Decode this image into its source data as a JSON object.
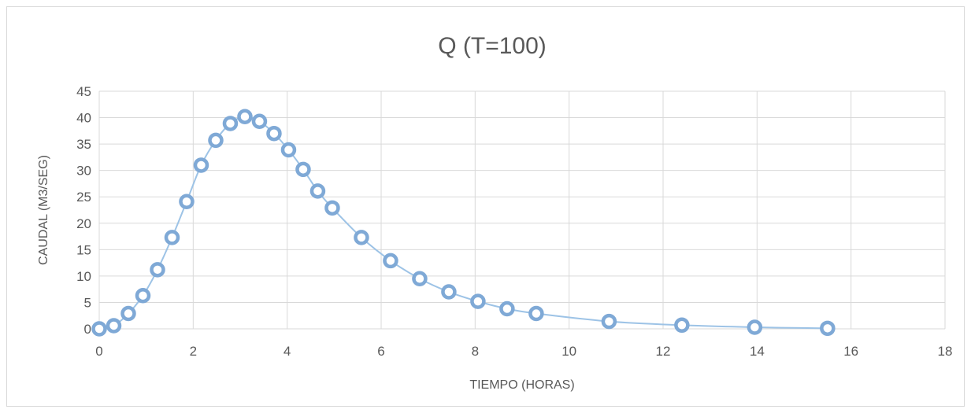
{
  "chart_data": {
    "type": "scatter",
    "title": "Q (T=100)",
    "xlabel": "TIEMPO (HORAS)",
    "ylabel": "CAUDAL (M3/SEG)",
    "xlim": [
      0,
      18
    ],
    "ylim": [
      0,
      45
    ],
    "xticks": [
      0,
      2,
      4,
      6,
      8,
      10,
      12,
      14,
      16,
      18
    ],
    "yticks": [
      0,
      5,
      10,
      15,
      20,
      25,
      30,
      35,
      40,
      45
    ],
    "grid": true,
    "legend": "none",
    "line_color": "#9dc3e6",
    "marker_color": "#7fa9d6",
    "series": [
      {
        "x": [
          0,
          0.31,
          0.62,
          0.93,
          1.24,
          1.55,
          1.86,
          2.17,
          2.48,
          2.79,
          3.1,
          3.41,
          3.72,
          4.03,
          4.34,
          4.65,
          4.96,
          5.58,
          6.2,
          6.82,
          7.44,
          8.06,
          8.68,
          9.3,
          10.85,
          12.4,
          13.95,
          15.5
        ],
        "y": [
          0,
          0.6,
          2.9,
          6.3,
          11.2,
          17.3,
          24.1,
          31.0,
          35.7,
          38.9,
          40.2,
          39.3,
          37.0,
          33.9,
          30.2,
          26.1,
          22.9,
          17.3,
          12.9,
          9.5,
          7.0,
          5.2,
          3.8,
          2.9,
          1.4,
          0.7,
          0.3,
          0.1
        ]
      }
    ]
  }
}
